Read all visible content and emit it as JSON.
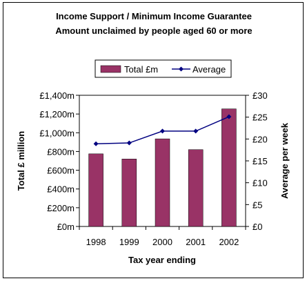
{
  "chart_data": {
    "type": "bar",
    "title": "Income Support / Minimum Income Guarantee",
    "subtitle": "Amount unclaimed by people aged 60 or more",
    "categories": [
      "1998",
      "1999",
      "2000",
      "2001",
      "2002"
    ],
    "xlabel": "Tax year ending",
    "ylabel": "Total £ million",
    "y2label": "Average per week",
    "ylim": [
      0,
      1400
    ],
    "y2lim": [
      0,
      30
    ],
    "y_ticks": [
      "£0m",
      "£200m",
      "£400m",
      "£600m",
      "£800m",
      "£1,000m",
      "£1,200m",
      "£1,400m"
    ],
    "y2_ticks": [
      "£0",
      "£5",
      "£10",
      "£15",
      "£20",
      "£25",
      "£30"
    ],
    "series": [
      {
        "name": "Total £m",
        "type": "bar",
        "axis": "left",
        "color": "#993366",
        "values": [
          775,
          720,
          935,
          820,
          1255
        ]
      },
      {
        "name": "Average",
        "type": "line",
        "axis": "right",
        "color": "#000080",
        "values": [
          18.9,
          19.1,
          21.8,
          21.8,
          25.1
        ]
      }
    ],
    "legend_position": "top",
    "grid": false
  }
}
